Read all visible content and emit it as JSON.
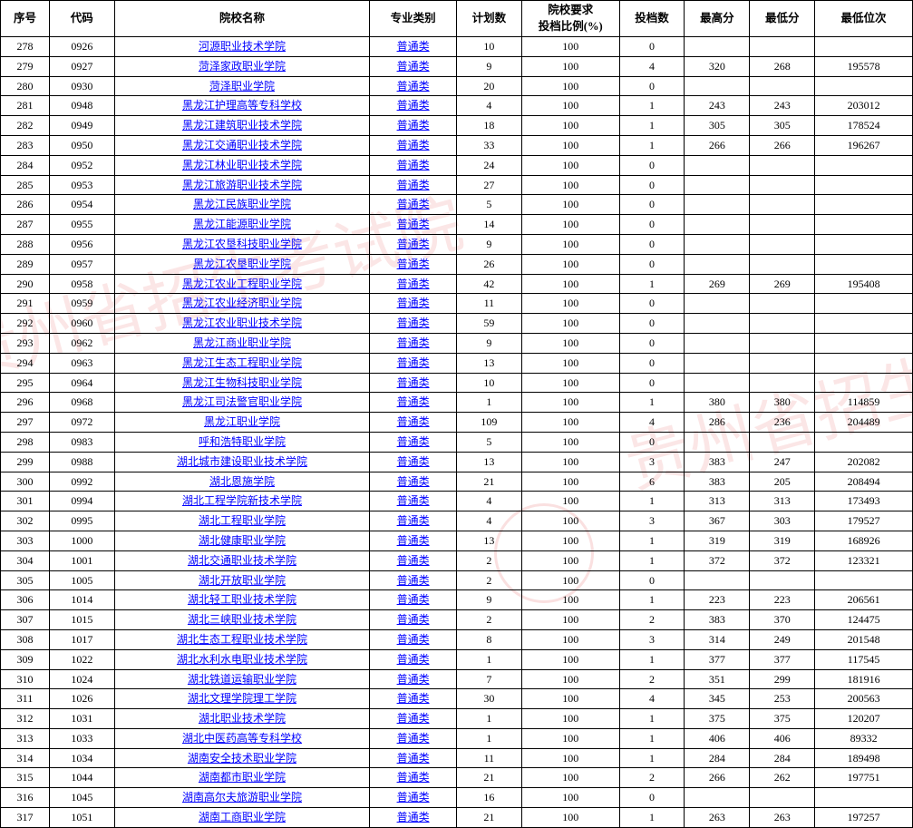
{
  "watermark_text": "贵州省招生考试院",
  "headers": {
    "seq": "序号",
    "code": "代码",
    "name": "院校名称",
    "type": "专业类别",
    "plan": "计划数",
    "ratio": "院校要求\n投档比例(%)",
    "count": "投档数",
    "high": "最高分",
    "low": "最低分",
    "rank": "最低位次"
  },
  "rows": [
    {
      "seq": "278",
      "code": "0926",
      "name": "河源职业技术学院",
      "type": "普通类",
      "plan": "10",
      "ratio": "100",
      "count": "0",
      "high": "",
      "low": "",
      "rank": ""
    },
    {
      "seq": "279",
      "code": "0927",
      "name": "菏泽家政职业学院",
      "type": "普通类",
      "plan": "9",
      "ratio": "100",
      "count": "4",
      "high": "320",
      "low": "268",
      "rank": "195578"
    },
    {
      "seq": "280",
      "code": "0930",
      "name": "菏泽职业学院",
      "type": "普通类",
      "plan": "20",
      "ratio": "100",
      "count": "0",
      "high": "",
      "low": "",
      "rank": ""
    },
    {
      "seq": "281",
      "code": "0948",
      "name": "黑龙江护理高等专科学校",
      "type": "普通类",
      "plan": "4",
      "ratio": "100",
      "count": "1",
      "high": "243",
      "low": "243",
      "rank": "203012"
    },
    {
      "seq": "282",
      "code": "0949",
      "name": "黑龙江建筑职业技术学院",
      "type": "普通类",
      "plan": "18",
      "ratio": "100",
      "count": "1",
      "high": "305",
      "low": "305",
      "rank": "178524"
    },
    {
      "seq": "283",
      "code": "0950",
      "name": "黑龙江交通职业技术学院",
      "type": "普通类",
      "plan": "33",
      "ratio": "100",
      "count": "1",
      "high": "266",
      "low": "266",
      "rank": "196267"
    },
    {
      "seq": "284",
      "code": "0952",
      "name": "黑龙江林业职业技术学院",
      "type": "普通类",
      "plan": "24",
      "ratio": "100",
      "count": "0",
      "high": "",
      "low": "",
      "rank": ""
    },
    {
      "seq": "285",
      "code": "0953",
      "name": "黑龙江旅游职业技术学院",
      "type": "普通类",
      "plan": "27",
      "ratio": "100",
      "count": "0",
      "high": "",
      "low": "",
      "rank": ""
    },
    {
      "seq": "286",
      "code": "0954",
      "name": "黑龙江民族职业学院",
      "type": "普通类",
      "plan": "5",
      "ratio": "100",
      "count": "0",
      "high": "",
      "low": "",
      "rank": ""
    },
    {
      "seq": "287",
      "code": "0955",
      "name": "黑龙江能源职业学院",
      "type": "普通类",
      "plan": "14",
      "ratio": "100",
      "count": "0",
      "high": "",
      "low": "",
      "rank": ""
    },
    {
      "seq": "288",
      "code": "0956",
      "name": "黑龙江农垦科技职业学院",
      "type": "普通类",
      "plan": "9",
      "ratio": "100",
      "count": "0",
      "high": "",
      "low": "",
      "rank": ""
    },
    {
      "seq": "289",
      "code": "0957",
      "name": "黑龙江农垦职业学院",
      "type": "普通类",
      "plan": "26",
      "ratio": "100",
      "count": "0",
      "high": "",
      "low": "",
      "rank": ""
    },
    {
      "seq": "290",
      "code": "0958",
      "name": "黑龙江农业工程职业学院",
      "type": "普通类",
      "plan": "42",
      "ratio": "100",
      "count": "1",
      "high": "269",
      "low": "269",
      "rank": "195408"
    },
    {
      "seq": "291",
      "code": "0959",
      "name": "黑龙江农业经济职业学院",
      "type": "普通类",
      "plan": "11",
      "ratio": "100",
      "count": "0",
      "high": "",
      "low": "",
      "rank": ""
    },
    {
      "seq": "292",
      "code": "0960",
      "name": "黑龙江农业职业技术学院",
      "type": "普通类",
      "plan": "59",
      "ratio": "100",
      "count": "0",
      "high": "",
      "low": "",
      "rank": ""
    },
    {
      "seq": "293",
      "code": "0962",
      "name": "黑龙江商业职业学院",
      "type": "普通类",
      "plan": "9",
      "ratio": "100",
      "count": "0",
      "high": "",
      "low": "",
      "rank": ""
    },
    {
      "seq": "294",
      "code": "0963",
      "name": "黑龙江生态工程职业学院",
      "type": "普通类",
      "plan": "13",
      "ratio": "100",
      "count": "0",
      "high": "",
      "low": "",
      "rank": ""
    },
    {
      "seq": "295",
      "code": "0964",
      "name": "黑龙江生物科技职业学院",
      "type": "普通类",
      "plan": "10",
      "ratio": "100",
      "count": "0",
      "high": "",
      "low": "",
      "rank": ""
    },
    {
      "seq": "296",
      "code": "0968",
      "name": "黑龙江司法警官职业学院",
      "type": "普通类",
      "plan": "1",
      "ratio": "100",
      "count": "1",
      "high": "380",
      "low": "380",
      "rank": "114859"
    },
    {
      "seq": "297",
      "code": "0972",
      "name": "黑龙江职业学院",
      "type": "普通类",
      "plan": "109",
      "ratio": "100",
      "count": "4",
      "high": "286",
      "low": "236",
      "rank": "204489"
    },
    {
      "seq": "298",
      "code": "0983",
      "name": "呼和浩特职业学院",
      "type": "普通类",
      "plan": "5",
      "ratio": "100",
      "count": "0",
      "high": "",
      "low": "",
      "rank": ""
    },
    {
      "seq": "299",
      "code": "0988",
      "name": "湖北城市建设职业技术学院",
      "type": "普通类",
      "plan": "13",
      "ratio": "100",
      "count": "3",
      "high": "383",
      "low": "247",
      "rank": "202082"
    },
    {
      "seq": "300",
      "code": "0992",
      "name": "湖北恩施学院",
      "type": "普通类",
      "plan": "21",
      "ratio": "100",
      "count": "6",
      "high": "383",
      "low": "205",
      "rank": "208494"
    },
    {
      "seq": "301",
      "code": "0994",
      "name": "湖北工程学院新技术学院",
      "type": "普通类",
      "plan": "4",
      "ratio": "100",
      "count": "1",
      "high": "313",
      "low": "313",
      "rank": "173493"
    },
    {
      "seq": "302",
      "code": "0995",
      "name": "湖北工程职业学院",
      "type": "普通类",
      "plan": "4",
      "ratio": "100",
      "count": "3",
      "high": "367",
      "low": "303",
      "rank": "179527"
    },
    {
      "seq": "303",
      "code": "1000",
      "name": "湖北健康职业学院",
      "type": "普通类",
      "plan": "13",
      "ratio": "100",
      "count": "1",
      "high": "319",
      "low": "319",
      "rank": "168926"
    },
    {
      "seq": "304",
      "code": "1001",
      "name": "湖北交通职业技术学院",
      "type": "普通类",
      "plan": "2",
      "ratio": "100",
      "count": "1",
      "high": "372",
      "low": "372",
      "rank": "123321"
    },
    {
      "seq": "305",
      "code": "1005",
      "name": "湖北开放职业学院",
      "type": "普通类",
      "plan": "2",
      "ratio": "100",
      "count": "0",
      "high": "",
      "low": "",
      "rank": ""
    },
    {
      "seq": "306",
      "code": "1014",
      "name": "湖北轻工职业技术学院",
      "type": "普通类",
      "plan": "9",
      "ratio": "100",
      "count": "1",
      "high": "223",
      "low": "223",
      "rank": "206561"
    },
    {
      "seq": "307",
      "code": "1015",
      "name": "湖北三峡职业技术学院",
      "type": "普通类",
      "plan": "2",
      "ratio": "100",
      "count": "2",
      "high": "383",
      "low": "370",
      "rank": "124475"
    },
    {
      "seq": "308",
      "code": "1017",
      "name": "湖北生态工程职业技术学院",
      "type": "普通类",
      "plan": "8",
      "ratio": "100",
      "count": "3",
      "high": "314",
      "low": "249",
      "rank": "201548"
    },
    {
      "seq": "309",
      "code": "1022",
      "name": "湖北水利水电职业技术学院",
      "type": "普通类",
      "plan": "1",
      "ratio": "100",
      "count": "1",
      "high": "377",
      "low": "377",
      "rank": "117545"
    },
    {
      "seq": "310",
      "code": "1024",
      "name": "湖北铁道运输职业学院",
      "type": "普通类",
      "plan": "7",
      "ratio": "100",
      "count": "2",
      "high": "351",
      "low": "299",
      "rank": "181916"
    },
    {
      "seq": "311",
      "code": "1026",
      "name": "湖北文理学院理工学院",
      "type": "普通类",
      "plan": "30",
      "ratio": "100",
      "count": "4",
      "high": "345",
      "low": "253",
      "rank": "200563"
    },
    {
      "seq": "312",
      "code": "1031",
      "name": "湖北职业技术学院",
      "type": "普通类",
      "plan": "1",
      "ratio": "100",
      "count": "1",
      "high": "375",
      "low": "375",
      "rank": "120207"
    },
    {
      "seq": "313",
      "code": "1033",
      "name": "湖北中医药高等专科学校",
      "type": "普通类",
      "plan": "1",
      "ratio": "100",
      "count": "1",
      "high": "406",
      "low": "406",
      "rank": "89332"
    },
    {
      "seq": "314",
      "code": "1034",
      "name": "湖南安全技术职业学院",
      "type": "普通类",
      "plan": "11",
      "ratio": "100",
      "count": "1",
      "high": "284",
      "low": "284",
      "rank": "189498"
    },
    {
      "seq": "315",
      "code": "1044",
      "name": "湖南都市职业学院",
      "type": "普通类",
      "plan": "21",
      "ratio": "100",
      "count": "2",
      "high": "266",
      "low": "262",
      "rank": "197751"
    },
    {
      "seq": "316",
      "code": "1045",
      "name": "湖南高尔夫旅游职业学院",
      "type": "普通类",
      "plan": "16",
      "ratio": "100",
      "count": "0",
      "high": "",
      "low": "",
      "rank": ""
    },
    {
      "seq": "317",
      "code": "1051",
      "name": "湖南工商职业学院",
      "type": "普通类",
      "plan": "21",
      "ratio": "100",
      "count": "1",
      "high": "263",
      "low": "263",
      "rank": "197257"
    }
  ]
}
